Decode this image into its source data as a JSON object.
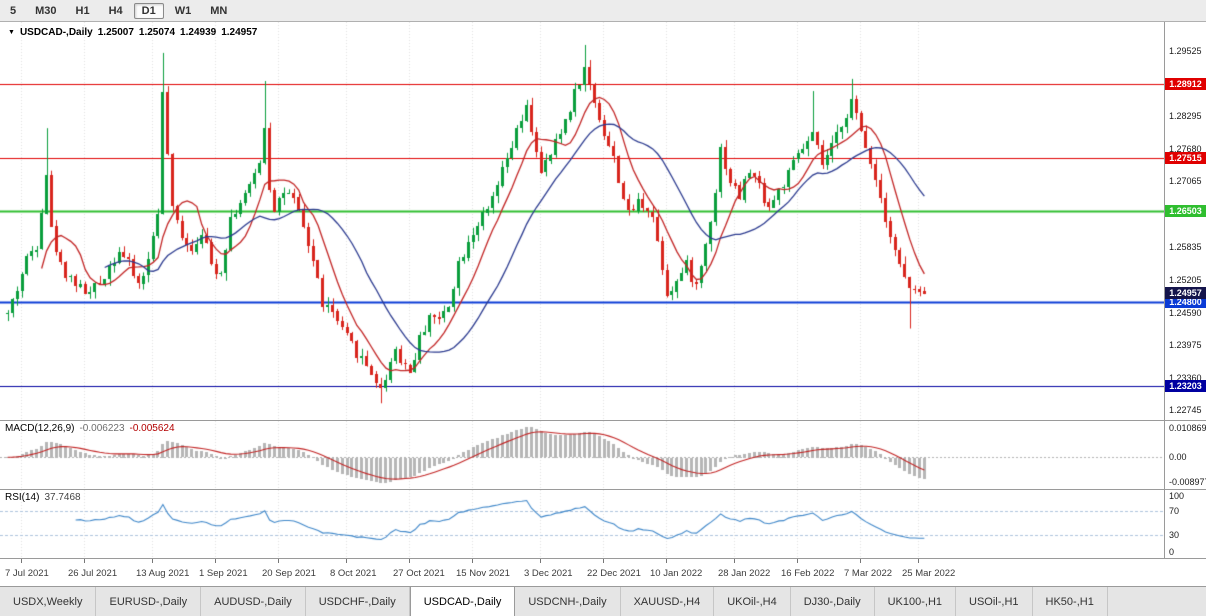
{
  "period_bar": {
    "buttons": [
      "5",
      "M30",
      "H1",
      "H4",
      "D1",
      "W1",
      "MN"
    ],
    "active": "D1"
  },
  "chart": {
    "header": {
      "marker": "▼",
      "symbol_label": "USDCAD-,Daily",
      "o": "1.25007",
      "h": "1.25074",
      "l": "1.24939",
      "c": "1.24957"
    },
    "price_scale": [
      "1.29525",
      "1.28295",
      "1.27680",
      "1.27065",
      "1.26450",
      "1.25835",
      "1.25205",
      "1.24590",
      "1.23975",
      "1.23360",
      "1.22745"
    ],
    "y_range": {
      "top": 1.2996,
      "bottom": 1.2264
    },
    "h_lines": [
      {
        "price": 1.28912,
        "label": "1.28912",
        "color": "#e00000",
        "width": 1
      },
      {
        "price": 1.27515,
        "label": "1.27515",
        "color": "#e00000",
        "width": 1
      },
      {
        "price": 1.26503,
        "label": "1.26503",
        "color": "#2fbe2f",
        "width": 2
      },
      {
        "price": 1.248,
        "label": "1.24800",
        "color": "#0a3bd6",
        "width": 2
      },
      {
        "price": 1.23203,
        "label": "1.23203",
        "color": "#0000a0",
        "width": 1
      }
    ],
    "current_price": {
      "label": "1.24957",
      "value": 1.24957,
      "badge_color": "#14144b"
    },
    "colors": {
      "up": "#0a9e3c",
      "down": "#d8251d",
      "ma_fast": "#c22525",
      "ma_slow": "#2b3a8f",
      "grid": "#e0e0e0"
    },
    "ma_fast": 8,
    "ma_slow": 21,
    "candles": {
      "count": 190,
      "seed": 42,
      "waypoints": [
        [
          0,
          1.2455
        ],
        [
          2,
          1.2505
        ],
        [
          4,
          1.256
        ],
        [
          6,
          1.259
        ],
        [
          8,
          1.2725
        ],
        [
          9,
          1.2615
        ],
        [
          11,
          1.2548
        ],
        [
          13,
          1.2525
        ],
        [
          15,
          1.2505
        ],
        [
          17,
          1.2495
        ],
        [
          19,
          1.2515
        ],
        [
          21,
          1.2548
        ],
        [
          23,
          1.2578
        ],
        [
          25,
          1.2548
        ],
        [
          27,
          1.2512
        ],
        [
          29,
          1.2555
        ],
        [
          31,
          1.2655
        ],
        [
          32,
          1.2868
        ],
        [
          33,
          1.2758
        ],
        [
          34,
          1.2648
        ],
        [
          36,
          1.2608
        ],
        [
          38,
          1.2578
        ],
        [
          40,
          1.2618
        ],
        [
          42,
          1.2548
        ],
        [
          44,
          1.2538
        ],
        [
          46,
          1.2638
        ],
        [
          48,
          1.2668
        ],
        [
          50,
          1.2692
        ],
        [
          52,
          1.2748
        ],
        [
          53,
          1.2812
        ],
        [
          54,
          1.2698
        ],
        [
          55,
          1.2658
        ],
        [
          57,
          1.2688
        ],
        [
          59,
          1.2668
        ],
        [
          61,
          1.2618
        ],
        [
          63,
          1.2558
        ],
        [
          65,
          1.2478
        ],
        [
          67,
          1.2458
        ],
        [
          69,
          1.2422
        ],
        [
          71,
          1.2398
        ],
        [
          73,
          1.2372
        ],
        [
          75,
          1.2348
        ],
        [
          77,
          1.2312
        ],
        [
          79,
          1.2368
        ],
        [
          80,
          1.2392
        ],
        [
          81,
          1.2372
        ],
        [
          83,
          1.2348
        ],
        [
          85,
          1.2408
        ],
        [
          87,
          1.2458
        ],
        [
          89,
          1.2442
        ],
        [
          91,
          1.2478
        ],
        [
          93,
          1.2552
        ],
        [
          95,
          1.2598
        ],
        [
          97,
          1.2628
        ],
        [
          99,
          1.2648
        ],
        [
          101,
          1.2698
        ],
        [
          103,
          1.2748
        ],
        [
          105,
          1.2798
        ],
        [
          107,
          1.2842
        ],
        [
          109,
          1.2768
        ],
        [
          110,
          1.2718
        ],
        [
          112,
          1.2758
        ],
        [
          114,
          1.2798
        ],
        [
          116,
          1.2848
        ],
        [
          118,
          1.2898
        ],
        [
          119,
          1.2918
        ],
        [
          121,
          1.2858
        ],
        [
          123,
          1.2798
        ],
        [
          125,
          1.2748
        ],
        [
          127,
          1.2678
        ],
        [
          128,
          1.2642
        ],
        [
          130,
          1.2668
        ],
        [
          132,
          1.2658
        ],
        [
          133,
          1.2642
        ],
        [
          135,
          1.2548
        ],
        [
          136,
          1.2498
        ],
        [
          138,
          1.2518
        ],
        [
          140,
          1.2548
        ],
        [
          142,
          1.2508
        ],
        [
          144,
          1.2588
        ],
        [
          146,
          1.2692
        ],
        [
          147,
          1.2768
        ],
        [
          149,
          1.2708
        ],
        [
          151,
          1.2678
        ],
        [
          153,
          1.2728
        ],
        [
          155,
          1.2698
        ],
        [
          157,
          1.2658
        ],
        [
          159,
          1.2688
        ],
        [
          161,
          1.2718
        ],
        [
          163,
          1.2758
        ],
        [
          165,
          1.2778
        ],
        [
          166,
          1.2792
        ],
        [
          168,
          1.2738
        ],
        [
          170,
          1.2768
        ],
        [
          172,
          1.2818
        ],
        [
          174,
          1.2858
        ],
        [
          176,
          1.2798
        ],
        [
          178,
          1.2748
        ],
        [
          180,
          1.2678
        ],
        [
          182,
          1.2608
        ],
        [
          184,
          1.2548
        ],
        [
          186,
          1.2502
        ],
        [
          188,
          1.249
        ],
        [
          189,
          1.24957
        ]
      ],
      "spikes": {
        "8": {
          "h": 1.2807
        },
        "32": {
          "h": 1.2949
        },
        "53": {
          "h": 1.2896
        },
        "77": {
          "l": 1.2288
        },
        "119": {
          "h": 1.2964
        },
        "166": {
          "h": 1.2877
        },
        "174": {
          "h": 1.29
        },
        "186": {
          "l": 1.2429
        }
      }
    }
  },
  "macd": {
    "label": "MACD(12,26,9)",
    "value": "-0.006223",
    "signal_value": "-0.005624",
    "fast": 12,
    "slow": 26,
    "signal": 9,
    "scale": [
      "0.010869",
      "0.00",
      "-0.008977"
    ],
    "colors": {
      "hist": "#b6b6b6",
      "signal": "#c22525"
    }
  },
  "rsi": {
    "label": "RSI(14)",
    "value": "37.7468",
    "period": 14,
    "color": "#3f87c9",
    "levels": [
      70,
      30
    ],
    "scale": [
      "100",
      "70",
      "30",
      "0"
    ]
  },
  "date_axis": {
    "indices": [
      3,
      16,
      30,
      43,
      56,
      70,
      83,
      96,
      110,
      123,
      136,
      150,
      163,
      176,
      188
    ],
    "labels": [
      "7 Jul 2021",
      "26 Jul 2021",
      "13 Aug 2021",
      "1 Sep 2021",
      "20 Sep 2021",
      "8 Oct 2021",
      "27 Oct 2021",
      "15 Nov 2021",
      "3 Dec 2021",
      "22 Dec 2021",
      "10 Jan 2022",
      "28 Jan 2022",
      "16 Feb 2022",
      "7 Mar 2022",
      "25 Mar 2022"
    ]
  },
  "tabs": {
    "items": [
      "USDX,Weekly",
      "EURUSD-,Daily",
      "AUDUSD-,Daily",
      "USDCHF-,Daily",
      "USDCAD-,Daily",
      "USDCNH-,Daily",
      "XAUUSD-,H4",
      "UKOil-,H4",
      "DJ30-,Daily",
      "UK100-,H1",
      "USOil-,H1",
      "HK50-,H1"
    ],
    "active": "USDCAD-,Daily"
  }
}
